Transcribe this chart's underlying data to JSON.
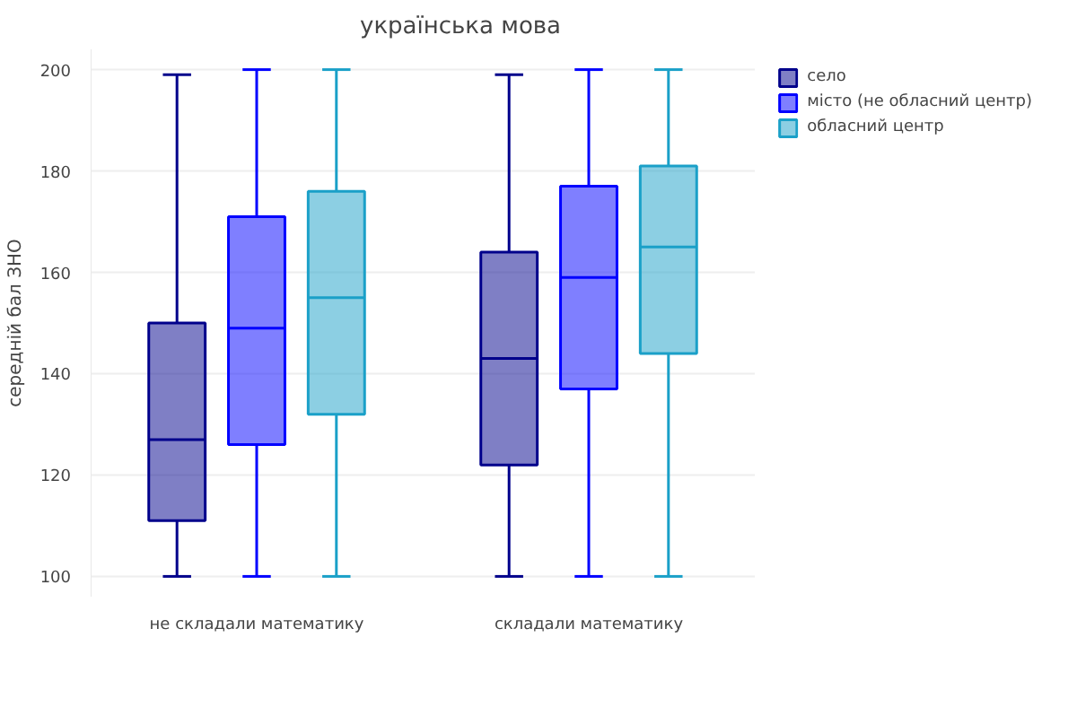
{
  "chart_data": {
    "type": "box",
    "title": "українська мова",
    "ylabel": "середній бал ЗНО",
    "categories": [
      "не складали математику",
      "складали математику"
    ],
    "ylim": [
      96,
      204
    ],
    "yticks": [
      100,
      120,
      140,
      160,
      180,
      200
    ],
    "grid": "y",
    "legend": "top right",
    "series": [
      {
        "name": "село",
        "color": "#00008b",
        "boxes": [
          {
            "low": 100,
            "q1": 111,
            "median": 127,
            "q3": 150,
            "high": 199
          },
          {
            "low": 100,
            "q1": 122,
            "median": 143,
            "q3": 164,
            "high": 199
          }
        ]
      },
      {
        "name": "місто (не обласний центр)",
        "color": "#0000ff",
        "boxes": [
          {
            "low": 100,
            "q1": 126,
            "median": 149,
            "q3": 171,
            "high": 200
          },
          {
            "low": 100,
            "q1": 137,
            "median": 159,
            "q3": 177,
            "high": 200
          }
        ]
      },
      {
        "name": "обласний центр",
        "color": "#1aa0c8",
        "boxes": [
          {
            "low": 100,
            "q1": 132,
            "median": 155,
            "q3": 176,
            "high": 200
          },
          {
            "low": 100,
            "q1": 144,
            "median": 165,
            "q3": 181,
            "high": 200
          }
        ]
      }
    ]
  }
}
